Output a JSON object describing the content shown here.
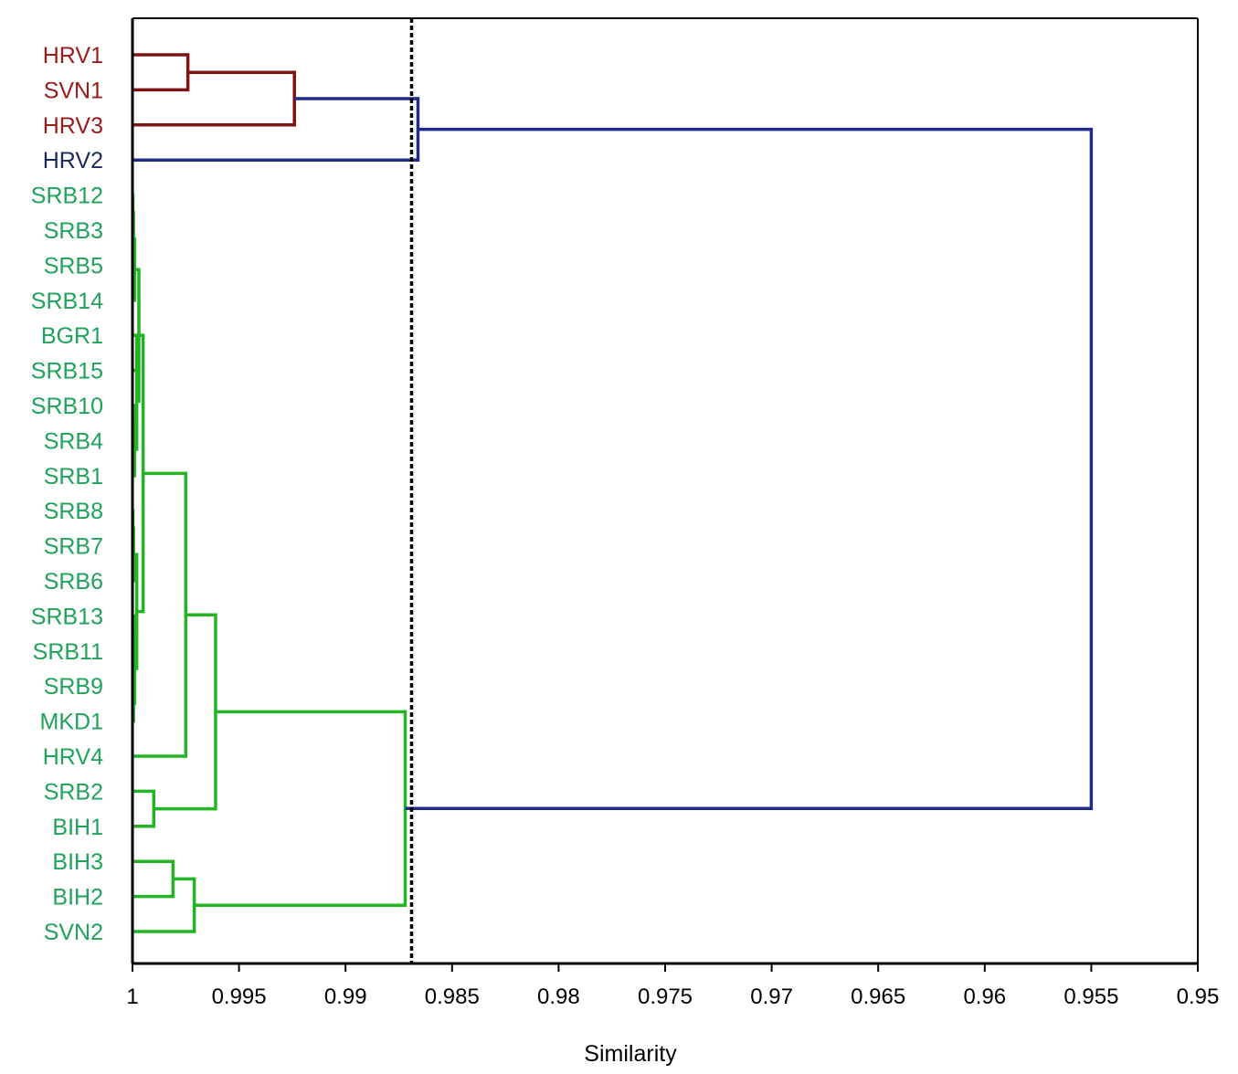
{
  "chart_data": {
    "type": "dendrogram",
    "title": "",
    "xlabel": "Similarity",
    "ylabel": "",
    "xlim": [
      1,
      0.95
    ],
    "x_ticks": [
      1,
      0.995,
      0.99,
      0.985,
      0.98,
      0.975,
      0.97,
      0.965,
      0.96,
      0.955,
      0.95
    ],
    "x_tick_labels": [
      "1",
      "0.995",
      "0.99",
      "0.985",
      "0.98",
      "0.975",
      "0.97",
      "0.965",
      "0.96",
      "0.955",
      "0.95"
    ],
    "cutoff_line": 0.9869,
    "colors": {
      "red_line": "#7f1414",
      "red_label": "#9b1b1b",
      "navy_line": "#1f2a8a",
      "navy_label": "#1a2a5a",
      "green_line": "#22b422",
      "green_label": "#1fa35a",
      "axis": "#000000"
    },
    "leaves": [
      {
        "label": "HRV1",
        "group": "red"
      },
      {
        "label": "SVN1",
        "group": "red"
      },
      {
        "label": "HRV3",
        "group": "red"
      },
      {
        "label": "HRV2",
        "group": "navy"
      },
      {
        "label": "SRB12",
        "group": "green"
      },
      {
        "label": "SRB3",
        "group": "green"
      },
      {
        "label": "SRB5",
        "group": "green"
      },
      {
        "label": "SRB14",
        "group": "green"
      },
      {
        "label": "BGR1",
        "group": "green"
      },
      {
        "label": "SRB15",
        "group": "green"
      },
      {
        "label": "SRB10",
        "group": "green"
      },
      {
        "label": "SRB4",
        "group": "green"
      },
      {
        "label": "SRB1",
        "group": "green"
      },
      {
        "label": "SRB8",
        "group": "green"
      },
      {
        "label": "SRB7",
        "group": "green"
      },
      {
        "label": "SRB6",
        "group": "green"
      },
      {
        "label": "SRB13",
        "group": "green"
      },
      {
        "label": "SRB11",
        "group": "green"
      },
      {
        "label": "SRB9",
        "group": "green"
      },
      {
        "label": "MKD1",
        "group": "green"
      },
      {
        "label": "HRV4",
        "group": "green"
      },
      {
        "label": "SRB2",
        "group": "green"
      },
      {
        "label": "BIH1",
        "group": "green"
      },
      {
        "label": "BIH3",
        "group": "green"
      },
      {
        "label": "BIH2",
        "group": "green"
      },
      {
        "label": "SVN2",
        "group": "green"
      }
    ],
    "tree": {
      "h": 0.955,
      "c": "navy",
      "k": [
        {
          "h": 0.9866,
          "c": "navy",
          "k": [
            {
              "h": 0.9924,
              "c": "red",
              "k": [
                {
                  "h": 0.9974,
                  "c": "red",
                  "k": [
                    "HRV1",
                    "SVN1"
                  ]
                },
                "HRV3"
              ]
            },
            "HRV2"
          ]
        },
        {
          "h": 0.9872,
          "c": "green",
          "k": [
            {
              "h": 0.9961,
              "c": "green",
              "k": [
                {
                  "h": 0.9975,
                  "c": "green",
                  "k": [
                    {
                      "h": 0.9995,
                      "c": "green",
                      "k": [
                        {
                          "h": 0.9997,
                          "c": "green",
                          "k": [
                            {
                              "h": 0.9999,
                              "c": "green",
                              "k": [
                                {
                                  "h": 0.99995,
                                  "c": "green",
                                  "k": [
                                    {
                                      "h": 0.99998,
                                      "c": "green",
                                      "k": [
                                        "SRB12",
                                        "SRB3"
                                      ]
                                    },
                                    "SRB5"
                                  ]
                                },
                                "SRB14"
                              ]
                            },
                            {
                              "h": 0.9998,
                              "c": "green",
                              "k": [
                                {
                                  "h": 0.9998,
                                  "c": "green",
                                  "k": [
                                    "BGR1",
                                    "SRB15"
                                  ]
                                },
                                {
                                  "h": 0.9999,
                                  "c": "green",
                                  "k": [
                                    {
                                      "h": 0.99995,
                                      "c": "green",
                                      "k": [
                                        "SRB10",
                                        "SRB4"
                                      ]
                                    },
                                    "SRB1"
                                  ]
                                }
                              ]
                            }
                          ]
                        },
                        {
                          "h": 0.9998,
                          "c": "green",
                          "k": [
                            {
                              "h": 0.99995,
                              "c": "green",
                              "k": [
                                {
                                  "h": 0.99998,
                                  "c": "green",
                                  "k": [
                                    "SRB8",
                                    "SRB7"
                                  ]
                                },
                                "SRB6"
                              ]
                            },
                            {
                              "h": 0.9999,
                              "c": "green",
                              "k": [
                                {
                                  "h": 0.99995,
                                  "c": "green",
                                  "k": [
                                    "SRB13",
                                    "SRB11"
                                  ]
                                },
                                {
                                  "h": 0.99995,
                                  "c": "green",
                                  "k": [
                                    "SRB9",
                                    "MKD1"
                                  ]
                                }
                              ]
                            }
                          ]
                        }
                      ]
                    },
                    "HRV4"
                  ]
                },
                {
                  "h": 0.999,
                  "c": "green",
                  "k": [
                    "SRB2",
                    "BIH1"
                  ]
                }
              ]
            },
            {
              "h": 0.9971,
              "c": "green",
              "k": [
                {
                  "h": 0.9981,
                  "c": "green",
                  "k": [
                    "BIH3",
                    "BIH2"
                  ]
                },
                "SVN2"
              ]
            }
          ]
        }
      ]
    }
  }
}
